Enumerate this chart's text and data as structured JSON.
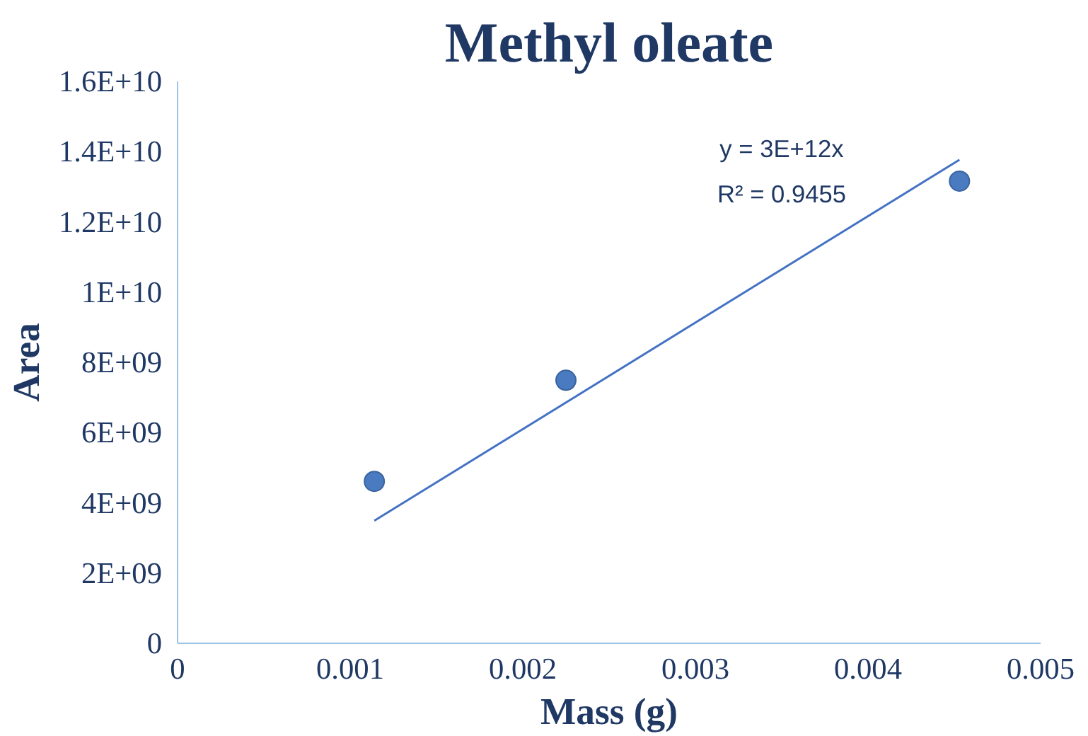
{
  "chart_data": {
    "type": "scatter",
    "title": "Methyl oleate",
    "xlabel": "Mass (g)",
    "ylabel": "Area",
    "x": [
      0.00114,
      0.00225,
      0.00453
    ],
    "series": [
      {
        "color": "#4a7bc0",
        "values": [
          4610000000,
          7490000000,
          13160000000
        ]
      },
      {
        "type": "line",
        "marker": "none",
        "color": "#4472c4",
        "x": [
          0.00114,
          0.00453
        ],
        "values": [
          3490000000,
          13770000000
        ]
      }
    ],
    "xlim": [
      0,
      0.005
    ],
    "xticks": [
      0,
      0.001,
      0.002,
      0.003,
      0.004,
      0.005
    ],
    "ylim": [
      0,
      16000000000
    ],
    "yticks": [
      {
        "value": 0,
        "label": "0"
      },
      {
        "value": 2000000000,
        "label": "2E+09"
      },
      {
        "value": 4000000000,
        "label": "4E+09"
      },
      {
        "value": 6000000000,
        "label": "6E+09"
      },
      {
        "value": 8000000000,
        "label": "8E+09"
      },
      {
        "value": 10000000000,
        "label": "1E+10"
      },
      {
        "value": 12000000000,
        "label": "1.2E+10"
      },
      {
        "value": 14000000000,
        "label": "1.4E+10"
      },
      {
        "value": 16000000000,
        "label": "1.6E+10"
      }
    ],
    "annotations": [
      "y = 3E+12x",
      "R² = 0.9455"
    ],
    "grid": false,
    "marker": "circle",
    "line_style": "solid"
  }
}
